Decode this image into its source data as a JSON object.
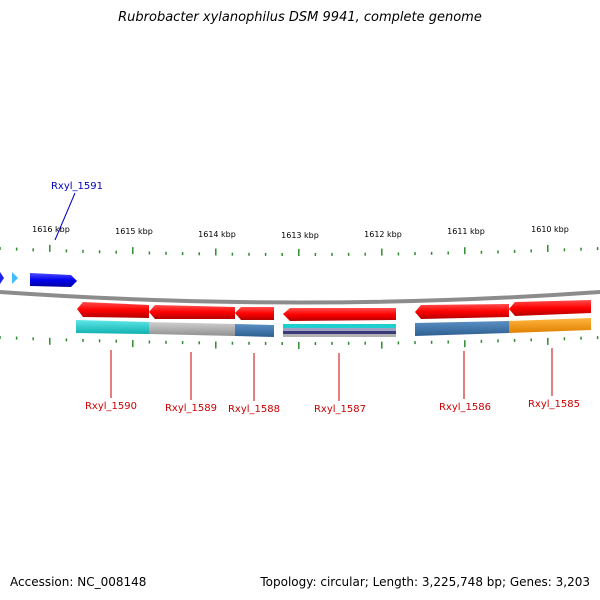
{
  "title": "Rubrobacter xylanophilus DSM 9941, complete genome",
  "footer": {
    "accession": "Accession: NC_008148",
    "summary": "Topology: circular; Length: 3,225,748 bp; Genes: 3,203"
  },
  "scale": {
    "labels": [
      "1616 kbp",
      "1615 kbp",
      "1614 kbp",
      "1613 kbp",
      "1612 kbp",
      "1611 kbp",
      "1610 kbp"
    ]
  },
  "genes_top": [
    {
      "id": "Rxyl_1591",
      "label": "Rxyl_1591",
      "color": "#0000bb"
    }
  ],
  "genes_bottom": [
    {
      "id": "Rxyl_1590",
      "label": "Rxyl_1590",
      "color": "#cc0000"
    },
    {
      "id": "Rxyl_1589",
      "label": "Rxyl_1589",
      "color": "#cc0000"
    },
    {
      "id": "Rxyl_1588",
      "label": "Rxyl_1588",
      "color": "#cc0000"
    },
    {
      "id": "Rxyl_1587",
      "label": "Rxyl_1587",
      "color": "#cc0000"
    },
    {
      "id": "Rxyl_1586",
      "label": "Rxyl_1586",
      "color": "#cc0000"
    },
    {
      "id": "Rxyl_1585",
      "label": "Rxyl_1585",
      "color": "#cc0000"
    }
  ],
  "colors": {
    "backbone": "#8c8c8c",
    "tick": "#2e8b2e",
    "forward_gene": "#1a1aff",
    "reverse_gene": "#ff1a1a",
    "domain_cyan": "#1fcfcf",
    "domain_grey": "#a8a8a8",
    "domain_steel": "#3f74a8",
    "domain_orange": "#ff9900"
  }
}
